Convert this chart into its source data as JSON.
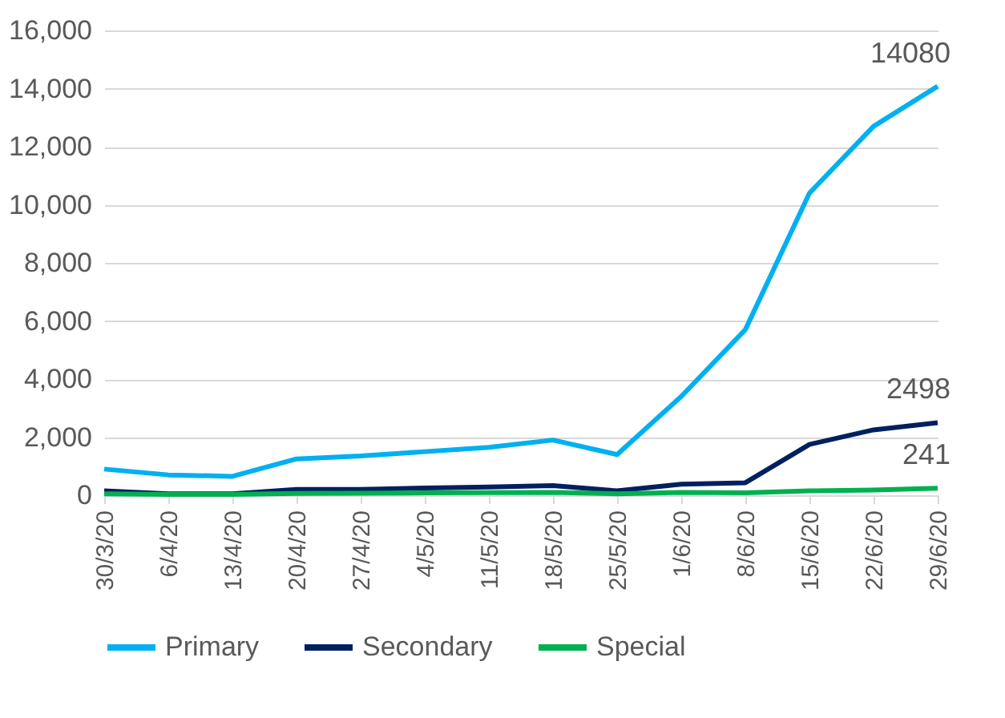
{
  "chart_data": {
    "type": "line",
    "categories": [
      "30/3/20",
      "6/4/20",
      "13/4/20",
      "20/4/20",
      "27/4/20",
      "4/5/20",
      "11/5/20",
      "18/5/20",
      "25/5/20",
      "1/6/20",
      "8/6/20",
      "15/6/20",
      "22/6/20",
      "29/6/20"
    ],
    "series": [
      {
        "name": "Primary",
        "color": "#00b0f0",
        "values": [
          900,
          700,
          650,
          1250,
          1350,
          1500,
          1650,
          1900,
          1400,
          3400,
          5700,
          10400,
          12700,
          14080
        ],
        "value_labels": [
          null,
          null,
          null,
          null,
          null,
          null,
          null,
          null,
          null,
          null,
          null,
          null,
          null,
          "14080"
        ]
      },
      {
        "name": "Secondary",
        "color": "#002060",
        "values": [
          150,
          50,
          50,
          200,
          200,
          250,
          280,
          330,
          150,
          380,
          430,
          1750,
          2250,
          2498
        ],
        "value_labels": [
          null,
          null,
          null,
          null,
          null,
          null,
          null,
          null,
          null,
          null,
          null,
          null,
          null,
          "2498"
        ]
      },
      {
        "name": "Special",
        "color": "#00b050",
        "values": [
          50,
          30,
          30,
          60,
          70,
          80,
          90,
          100,
          50,
          100,
          80,
          150,
          180,
          241
        ],
        "value_labels": [
          null,
          null,
          null,
          null,
          null,
          null,
          null,
          null,
          null,
          null,
          null,
          null,
          null,
          "241"
        ]
      }
    ],
    "ylim": [
      0,
      16000
    ],
    "yticks": [
      0,
      {
        "value": 2000,
        "label": "2,000"
      },
      {
        "value": 4000,
        "label": "4,000"
      },
      {
        "value": 6000,
        "label": "6,000"
      },
      {
        "value": 8000,
        "label": "8,000"
      },
      {
        "value": 10000,
        "label": "10,000"
      },
      {
        "value": 12000,
        "label": "12,000"
      },
      {
        "value": 14000,
        "label": "14,000"
      },
      {
        "value": 16000,
        "label": "16,000"
      }
    ],
    "grid": "y",
    "legend": "bottom",
    "marker": "none",
    "line_style": "solid"
  }
}
